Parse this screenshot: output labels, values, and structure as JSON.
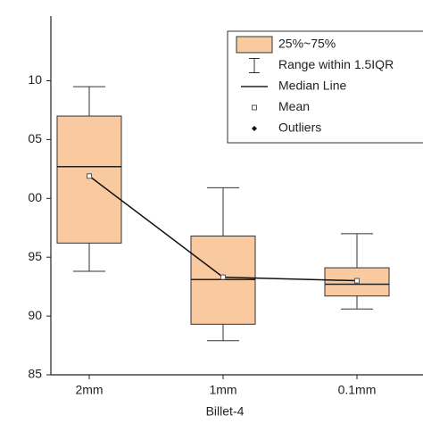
{
  "chart_data": {
    "type": "box",
    "x_label": "Billet-4",
    "categories": [
      "2mm",
      "1mm",
      "0.1mm"
    ],
    "whisker_high": [
      109.5,
      100.9,
      97.0
    ],
    "q3": [
      107.0,
      96.8,
      94.1
    ],
    "median": [
      102.7,
      93.1,
      92.7
    ],
    "q1": [
      96.2,
      89.3,
      91.7
    ],
    "whisker_low": [
      93.8,
      87.9,
      90.6
    ],
    "mean": [
      101.9,
      93.3,
      93.0
    ],
    "box_color": "#f9c9a0",
    "ylim": [
      85,
      115.5
    ],
    "yticks": [
      {
        "value": 110,
        "label": "10"
      },
      {
        "value": 105,
        "label": "05"
      },
      {
        "value": 100,
        "label": "00"
      },
      95,
      90,
      85
    ],
    "legend": [
      "25%~75%",
      "Range within 1.5IQR",
      "Median Line",
      "Mean",
      "Outliers"
    ]
  }
}
